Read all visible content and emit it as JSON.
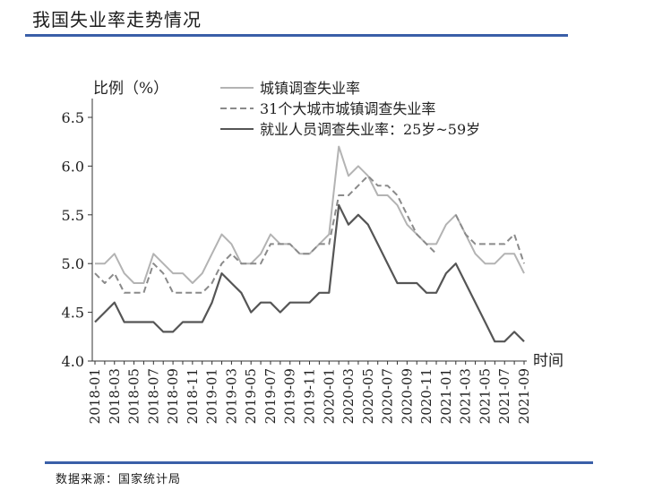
{
  "page": {
    "title": "我国失业率走势情况",
    "source": "数据来源：国家统计局"
  },
  "chart_data": {
    "type": "line",
    "ylabel": "比例（%）",
    "xlabel": "时间",
    "ylim": [
      4.0,
      6.5
    ],
    "yticks": [
      "4.0",
      "4.5",
      "5.0",
      "5.5",
      "6.0",
      "6.5"
    ],
    "grid": false,
    "legend_position": "top",
    "x": [
      "2018-01",
      "2018-02",
      "2018-03",
      "2018-04",
      "2018-05",
      "2018-06",
      "2018-07",
      "2018-08",
      "2018-09",
      "2018-10",
      "2018-11",
      "2018-12",
      "2019-01",
      "2019-02",
      "2019-03",
      "2019-04",
      "2019-05",
      "2019-06",
      "2019-07",
      "2019-08",
      "2019-09",
      "2019-10",
      "2019-11",
      "2019-12",
      "2020-01",
      "2020-02",
      "2020-03",
      "2020-04",
      "2020-05",
      "2020-06",
      "2020-07",
      "2020-08",
      "2020-09",
      "2020-10",
      "2020-11",
      "2020-12",
      "2021-01",
      "2021-02",
      "2021-03",
      "2021-04",
      "2021-05",
      "2021-06",
      "2021-07",
      "2021-08",
      "2021-09"
    ],
    "xtick_labels": [
      "2018-01",
      "2018-03",
      "2018-05",
      "2018-07",
      "2018-09",
      "2018-11",
      "2019-01",
      "2019-03",
      "2019-05",
      "2019-07",
      "2019-09",
      "2019-11",
      "2020-01",
      "2020-03",
      "2020-05",
      "2020-07",
      "2020-09",
      "2020-11",
      "2021-01",
      "2021-03",
      "2021-05",
      "2021-07",
      "2021-09"
    ],
    "series": [
      {
        "name": "城镇调查失业率",
        "color": "#b3b3b3",
        "dash": "solid",
        "values": [
          5.0,
          5.0,
          5.1,
          4.9,
          4.8,
          4.8,
          5.1,
          5.0,
          4.9,
          4.9,
          4.8,
          4.9,
          5.1,
          5.3,
          5.2,
          5.0,
          5.0,
          5.1,
          5.3,
          5.2,
          5.2,
          5.1,
          5.1,
          5.2,
          5.3,
          6.2,
          5.9,
          6.0,
          5.9,
          5.7,
          5.7,
          5.6,
          5.4,
          5.3,
          5.2,
          5.2,
          5.4,
          5.5,
          5.3,
          5.1,
          5.0,
          5.0,
          5.1,
          5.1,
          4.9
        ]
      },
      {
        "name": "31个大城市城镇调查失业率",
        "color": "#8a8a8a",
        "dash": "dashed",
        "values": [
          4.9,
          4.8,
          4.9,
          4.7,
          4.7,
          4.7,
          5.0,
          4.9,
          4.7,
          4.7,
          4.7,
          4.7,
          4.8,
          5.0,
          5.1,
          5.0,
          5.0,
          5.0,
          5.2,
          5.2,
          5.2,
          5.1,
          5.1,
          5.2,
          5.2,
          5.7,
          5.7,
          5.8,
          5.9,
          5.8,
          5.8,
          5.7,
          5.5,
          5.3,
          5.2,
          5.1,
          null,
          5.5,
          5.3,
          5.2,
          5.2,
          5.2,
          5.2,
          5.3,
          5.0
        ]
      },
      {
        "name": "就业人员调查失业率：25岁~59岁",
        "color": "#555555",
        "dash": "solid",
        "values": [
          4.4,
          4.5,
          4.6,
          4.4,
          4.4,
          4.4,
          4.4,
          4.3,
          4.3,
          4.4,
          4.4,
          4.4,
          4.6,
          4.9,
          4.8,
          4.7,
          4.5,
          4.6,
          4.6,
          4.5,
          4.6,
          4.6,
          4.6,
          4.7,
          4.7,
          5.6,
          5.4,
          5.5,
          5.4,
          5.2,
          5.0,
          4.8,
          4.8,
          4.8,
          4.7,
          4.7,
          4.9,
          5.0,
          4.8,
          4.6,
          4.4,
          4.2,
          4.2,
          4.3,
          4.2
        ]
      }
    ]
  }
}
